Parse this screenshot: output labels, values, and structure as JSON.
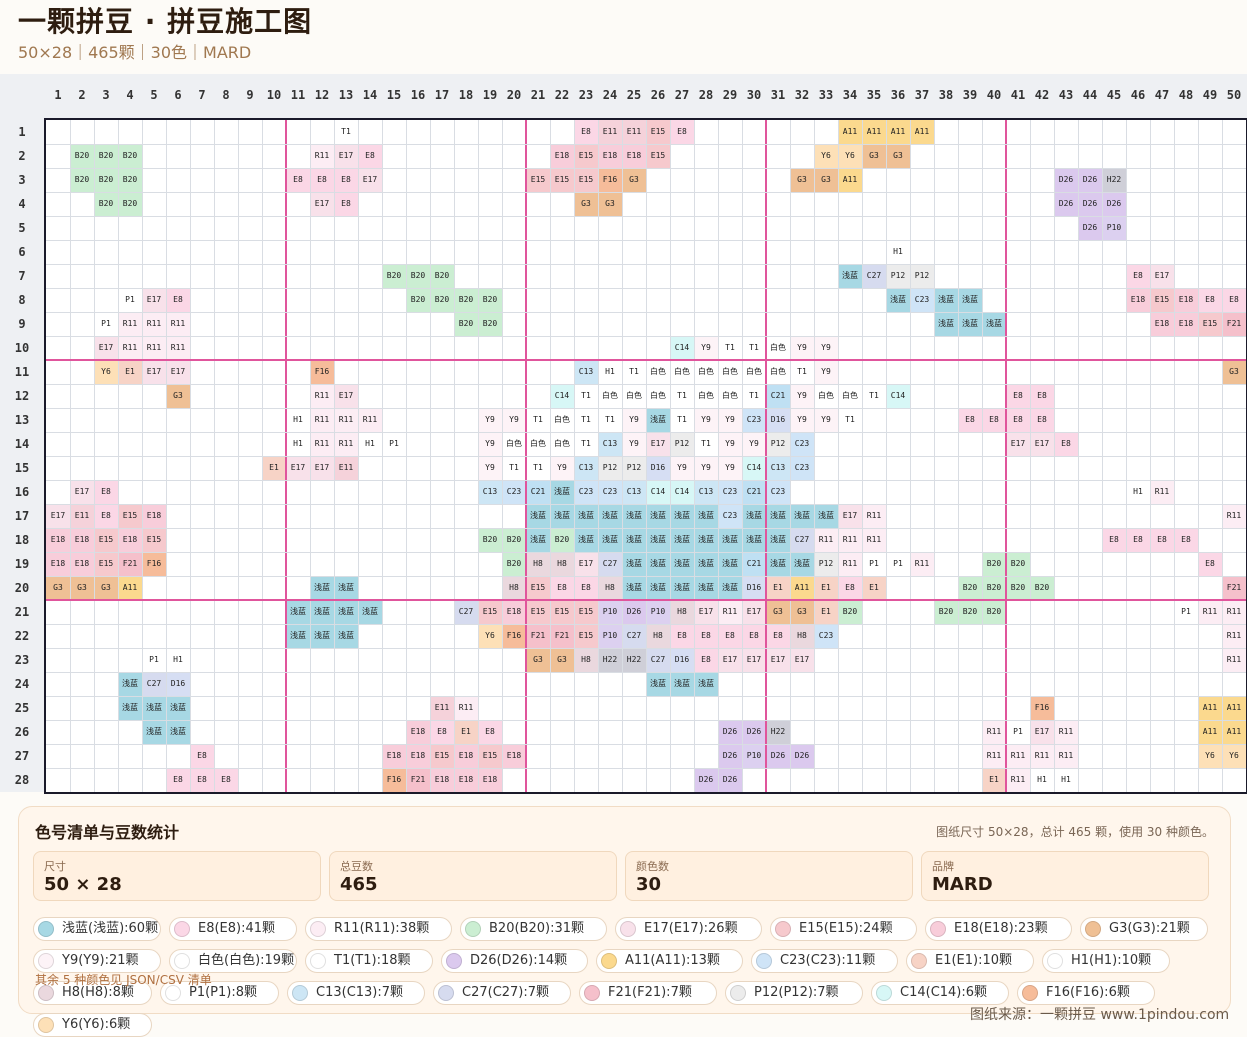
{
  "header": {
    "title": "一颗拼豆 · 拼豆施工图",
    "subtitle": "50×28｜465颗｜30色｜MARD"
  },
  "colors": {
    "浅蓝": "#a7d8e4",
    "E8": "#fbd7e6",
    "R11": "#fcedf4",
    "B20": "#cbeed2",
    "E17": "#f8e1ea",
    "E15": "#f6c9cd",
    "E18": "#f8cdda",
    "G3": "#efc095",
    "Y9": "#fdf3f7",
    "白色": "#ffffff",
    "T1": "#ffffff",
    "D26": "#dbc9ee",
    "A11": "#fbd98e",
    "C23": "#cfe4f7",
    "E1": "#f7d3c6",
    "H1": "#ffffff",
    "H8": "#ead8de",
    "P1": "#ffffff",
    "C13": "#cde6f5",
    "C27": "#d6dbef",
    "F21": "#f5c0cb",
    "P12": "#ececec",
    "C14": "#d7f7f6",
    "F16": "#f6bc9a",
    "Y6": "#fde0b7",
    "E11": "#f5d2da",
    "H22": "#cfcfd8",
    "C21": "#bfe0f3",
    "D16": "#d6def3",
    "P10": "#dcd0f0",
    "C14x": "#d7f7f6"
  },
  "grid": {
    "cols": 50,
    "rows": 28,
    "cells": [
      "|||||||||||||T1||||||||||E8|E11|E11|E15|E8|||||||A11|A11|A11|A11||||||||||||||",
      "||B20|B20|B20||||||||R11|E17|E8||||||||E18|E15|E18|E18|E15|||||||Y6|Y6|G3|G3||||||||||||||",
      "||B20|B20|B20|||||||E8|E8|E8|E17|||||||E15|E15|E15|F16|G3|||||||G3|G3|A11|||||||||D26|D26|H22|||||",
      "|||B20|B20||||||||E17|E8||||||||||G3|G3|||||||||||||||||||D26|D26|D26|||||",
      "||||||||||||||||||||||||||||||||||||||||||||D26|P10||||||",
      "||||||||||||||||||||||||||||||||||||H1||||||||||||||",
      "|||||||||||||||B20|B20|B20|||||||||||||||||浅蓝|C27|P12|P12|||||||||E8|E17|||",
      "||||P1|E17|E8||||||||||B20|B20|B20|B20|||||||||||||||||浅蓝|C23|浅蓝|浅蓝|||||||E18|E15|E18|E8|E8||",
      "|||P1|R11|R11|R11||||||||||||B20|B20|||||||||||||||||||浅蓝|浅蓝|浅蓝|||||||E18|E18|E15|F21|E15||",
      "|||E17|R11|R11|R11|||||||||||||||||||||C14|Y9|T1|T1|白色|Y9|Y9|||||||||||||||||||||G3|F21|E15|E15|E15||",
      "|||Y6|E1|E17|E17||||||F16|||||||||||C13|H1|T1|白色|白色|白色|白色|白色|白色|T1|Y9|||||||||||||||||G3|G3|||",
      "||||||G3||||||R11|E17|||||||||C14|T1|白色|白色|白色|T1|白色|白色|T1|C21|Y9|白色|白色|T1|C14|||||E8|E8||||||||||",
      "|||||||||||H1|R11|R11|R11|||||Y9|Y9|T1|白色|T1|T1|Y9|浅蓝|T1|Y9|Y9|C23|D16|Y9|Y9|T1|||||E8|E8|E8|E8||||||||",
      "|||||||||||H1|R11|R11|H1|P1||||Y9|白色|白色|白色|T1|C13|Y9|E17|P12|T1|Y9|Y9|P12|C23|||||||||E17|E17|E8|||||||||",
      "||||||||||E1|E17|E17|E11||||||Y9|T1|T1|Y9|C13|P12|P12|D16|Y9|Y9|Y9|C14|C13|C23||||||||||||||||||||",
      "||E17|E8||||||||||||||||C13|C23|C21|浅蓝|C23|C23|C13|C14|C14|C13|C23|C21|C23|||||||||||||||H1|R11|||||||",
      "|E17|E11|E8|E15|E18||||||||||||||||浅蓝|浅蓝|浅蓝|浅蓝|浅蓝|浅蓝|浅蓝|浅蓝|C23|浅蓝|浅蓝|浅蓝|浅蓝|E17|R11|||||||||||||||R11|E8|E18|||||",
      "|E18|E18|E15|E18|E15||||||||||||||B20|B20|浅蓝|B20|浅蓝|浅蓝|浅蓝|浅蓝|浅蓝|浅蓝|浅蓝|浅蓝|浅蓝|C27|R11|R11|R11||||||||||E8|E8|E8|E8||||||",
      "|E18|E18|E15|F21|F16|||||||||||||||B20|H8|H8|E17|C27|浅蓝|浅蓝|浅蓝|浅蓝|浅蓝|C21|浅蓝|浅蓝|P12|R11|P1|P1|R11|||B20|B20||||||||E8|||||||",
      "|G3|G3|G3|A11||||||||浅蓝|浅蓝|||||||H8|E15|E8|E8|H8|浅蓝|浅蓝|浅蓝|浅蓝|浅蓝|D16|E1|A11|E1|E8|E1||||B20|B20|B20|B20||||||||F21|||",
      "|||||||||||浅蓝|浅蓝|浅蓝|浅蓝||||C27|E15|E18|E15|E15|E15|P10|D26|P10|H8|E17|R11|E17|G3|G3|E1|B20||||B20|B20|B20||||||||P1|R11|R11|R11",
      "|||||||||||浅蓝|浅蓝|浅蓝||||||Y6|F16|F21|F21|E15|P10|C27|H8|E8|E8|E8|E8|E8|H8|C23|||||||||||||||||R11|E17|R11|R11",
      "|||||P1|H1|||||||||||||||G3|G3|H8|H22|H22|C27|D16|E8|E17|E17|E17|E17||||||||||||||||||R11|白色|H1|R11",
      "||||浅蓝|C27|D16||||||||||||||||||||浅蓝|浅蓝|浅蓝||||||||||||||||||||||||G3|E1|E1|G3",
      "||||浅蓝|浅蓝|浅蓝|||||||||||E11|R11||||||||||||||||||||||||F16|||||||A11|A11|A11|||||",
      "|||||浅蓝|浅蓝||||||||||E18|E8|E1|E8||||||||||D26|D26|H22|||||||||R11|P1|E17|R11||||||A11|A11|G3|||||",
      "|||||||E8||||||||E18|E18|E15|E18|E15|E18|||||||||D26|P10|D26|D26||||||||R11|R11|R11|R11||||||Y6|Y6|A11|||||",
      "||||||E8|E8|E8|||||||F16|F21|E18|E18|E18|||||||||D26|D26|||||||||||E1|R11|H1|H1|||||||||||||"
    ]
  },
  "summary": {
    "heading": "色号清单与豆数统计",
    "note": "图纸尺寸 50×28，总计 465 颗，使用 30 种颜色。",
    "cards": [
      {
        "label": "尺寸",
        "value": "50 × 28"
      },
      {
        "label": "总豆数",
        "value": "465"
      },
      {
        "label": "颜色数",
        "value": "30"
      },
      {
        "label": "品牌",
        "value": "MARD"
      }
    ],
    "chips": [
      {
        "text": "浅蓝(浅蓝):60颗",
        "color": "#a7d8e4"
      },
      {
        "text": "E8(E8):41颗",
        "color": "#fbd7e6"
      },
      {
        "text": "R11(R11):38颗",
        "color": "#fcedf4"
      },
      {
        "text": "B20(B20):31颗",
        "color": "#cbeed2"
      },
      {
        "text": "E17(E17):26颗",
        "color": "#f8e1ea"
      },
      {
        "text": "E15(E15):24颗",
        "color": "#f6c9cd"
      },
      {
        "text": "E18(E18):23颗",
        "color": "#f8cdda"
      },
      {
        "text": "G3(G3):21颗",
        "color": "#efc095"
      },
      {
        "text": "Y9(Y9):21颗",
        "color": "#fdf3f7"
      },
      {
        "text": "白色(白色):19颗",
        "color": "#ffffff"
      },
      {
        "text": "T1(T1):18颗",
        "color": "#ffffff"
      },
      {
        "text": "D26(D26):14颗",
        "color": "#dbc9ee"
      },
      {
        "text": "A11(A11):13颗",
        "color": "#fbd98e"
      },
      {
        "text": "C23(C23):11颗",
        "color": "#cfe4f7"
      },
      {
        "text": "E1(E1):10颗",
        "color": "#f7d3c6"
      },
      {
        "text": "H1(H1):10颗",
        "color": "#ffffff"
      },
      {
        "text": "H8(H8):8颗",
        "color": "#ead8de"
      },
      {
        "text": "P1(P1):8颗",
        "color": "#ffffff"
      },
      {
        "text": "C13(C13):7颗",
        "color": "#cde6f5"
      },
      {
        "text": "C27(C27):7颗",
        "color": "#d6dbef"
      },
      {
        "text": "F21(F21):7颗",
        "color": "#f5c0cb"
      },
      {
        "text": "P12(P12):7颗",
        "color": "#ececec"
      },
      {
        "text": "C14(C14):6颗",
        "color": "#d7f7f6"
      },
      {
        "text": "F16(F16):6颗",
        "color": "#f6bc9a"
      },
      {
        "text": "Y6(Y6):6颗",
        "color": "#fde0b7"
      }
    ],
    "more": "其余 5 种颜色见 JSON/CSV 清单"
  },
  "footer": "图纸来源：一颗拼豆 www.1pindou.com"
}
